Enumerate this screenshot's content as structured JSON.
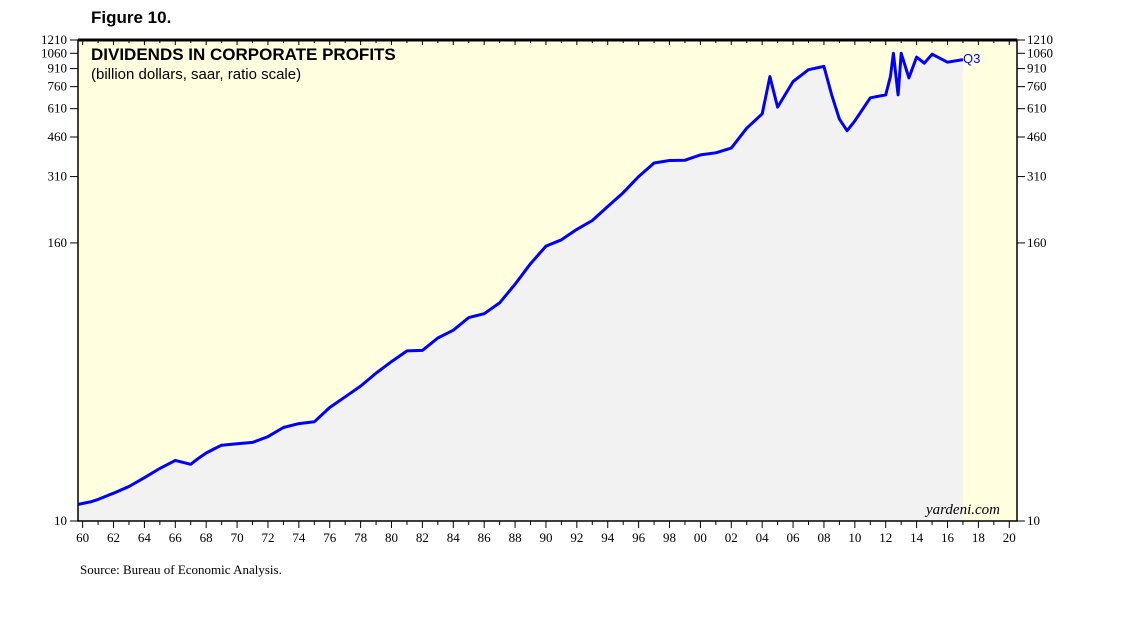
{
  "figure_label": "Figure 10.",
  "source_note": "Source: Bureau of Economic Analysis.",
  "chart_data": {
    "type": "line",
    "title": "DIVIDENDS IN CORPORATE PROFITS",
    "subtitle": "(billion dollars, saar, ratio scale)",
    "credit": "yardeni.com",
    "scale": "log",
    "ylim": [
      10,
      1210
    ],
    "xlim": [
      1959.7,
      2020.5
    ],
    "y_ticks": [
      10,
      160,
      310,
      460,
      610,
      760,
      910,
      1060,
      1210
    ],
    "x_tick_labels": [
      "60",
      "62",
      "64",
      "66",
      "68",
      "70",
      "72",
      "74",
      "76",
      "78",
      "80",
      "82",
      "84",
      "86",
      "88",
      "90",
      "92",
      "94",
      "96",
      "98",
      "00",
      "02",
      "04",
      "06",
      "08",
      "10",
      "12",
      "14",
      "16",
      "18",
      "20"
    ],
    "x_tick_years": [
      1960,
      1962,
      1964,
      1966,
      1968,
      1970,
      1972,
      1974,
      1976,
      1978,
      1980,
      1982,
      1984,
      1986,
      1988,
      1990,
      1992,
      1994,
      1996,
      1998,
      2000,
      2002,
      2004,
      2006,
      2008,
      2010,
      2012,
      2014,
      2016,
      2018,
      2020
    ],
    "last_point_label": "Q3",
    "colors": {
      "background": "#ffffe0",
      "area": "#f2f2f2",
      "line": "#0000ff",
      "axis": "#000000"
    },
    "series": [
      {
        "name": "Dividends",
        "x": [
          1959.7,
          1960.5,
          1961,
          1962,
          1963,
          1964,
          1965,
          1966,
          1967,
          1967.5,
          1968,
          1968.5,
          1969,
          1970,
          1971,
          1972,
          1973,
          1974,
          1975,
          1976,
          1977,
          1978,
          1979,
          1980,
          1981,
          1982,
          1983,
          1984,
          1985,
          1986,
          1987,
          1988,
          1989,
          1990,
          1991,
          1992,
          1993,
          1994,
          1995,
          1996,
          1997,
          1998,
          1999,
          2000,
          2001,
          2002,
          2003,
          2004,
          2004.5,
          2005,
          2006,
          2007,
          2008,
          2008.5,
          2009,
          2009.5,
          2010,
          2011,
          2012,
          2012.3,
          2012.5,
          2012.8,
          2013,
          2013.5,
          2014,
          2014.5,
          2015,
          2016,
          2017
        ],
        "values": [
          11.8,
          12.1,
          12.4,
          13.2,
          14.1,
          15.4,
          16.9,
          18.3,
          17.6,
          18.7,
          19.7,
          20.5,
          21.3,
          21.6,
          21.9,
          23.2,
          25.4,
          26.4,
          26.9,
          31,
          34.5,
          38.4,
          43.7,
          49,
          54.5,
          54.8,
          62,
          67,
          76,
          79,
          88,
          106,
          130,
          155,
          165,
          183,
          200,
          230,
          264,
          310,
          355,
          364,
          365,
          385,
          393,
          412,
          502,
          580,
          840,
          620,
          800,
          900,
          930,
          700,
          550,
          490,
          540,
          680,
          700,
          840,
          1060,
          700,
          1060,
          830,
          1020,
          960,
          1050,
          970,
          995
        ]
      }
    ]
  }
}
